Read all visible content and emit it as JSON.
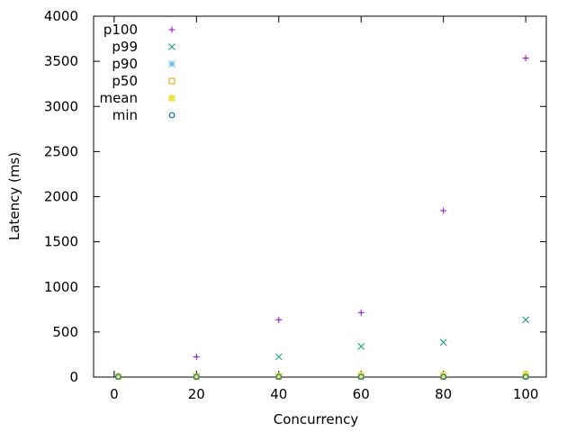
{
  "chart_data": {
    "type": "scatter",
    "title": "",
    "xlabel": "Concurrency",
    "ylabel": "Latency (ms)",
    "xlim": [
      -5,
      105
    ],
    "ylim": [
      0,
      4000
    ],
    "x_ticks": [
      0,
      20,
      40,
      60,
      80,
      100
    ],
    "y_ticks": [
      0,
      500,
      1000,
      1500,
      2000,
      2500,
      3000,
      3500,
      4000
    ],
    "grid": false,
    "legend_position": "top-left",
    "x": [
      1,
      20,
      40,
      60,
      80,
      100
    ],
    "series": [
      {
        "name": "p100",
        "marker": "plus",
        "color": "#9400d3",
        "values": [
          12,
          225,
          635,
          715,
          1845,
          3535
        ]
      },
      {
        "name": "p99",
        "marker": "cross",
        "color": "#009e73",
        "values": [
          8,
          10,
          225,
          340,
          385,
          635
        ]
      },
      {
        "name": "p90",
        "marker": "star",
        "color": "#56b4e9",
        "values": [
          6,
          6,
          10,
          12,
          14,
          18
        ]
      },
      {
        "name": "p50",
        "marker": "open-square",
        "color": "#e69f00",
        "values": [
          5,
          5,
          6,
          8,
          8,
          10
        ]
      },
      {
        "name": "mean",
        "marker": "filled-square",
        "color": "#f0e442",
        "values": [
          6,
          8,
          12,
          22,
          22,
          30
        ]
      },
      {
        "name": "min",
        "marker": "open-circle",
        "color": "#0072b2",
        "values": [
          4,
          4,
          4,
          4,
          4,
          4
        ]
      }
    ]
  }
}
